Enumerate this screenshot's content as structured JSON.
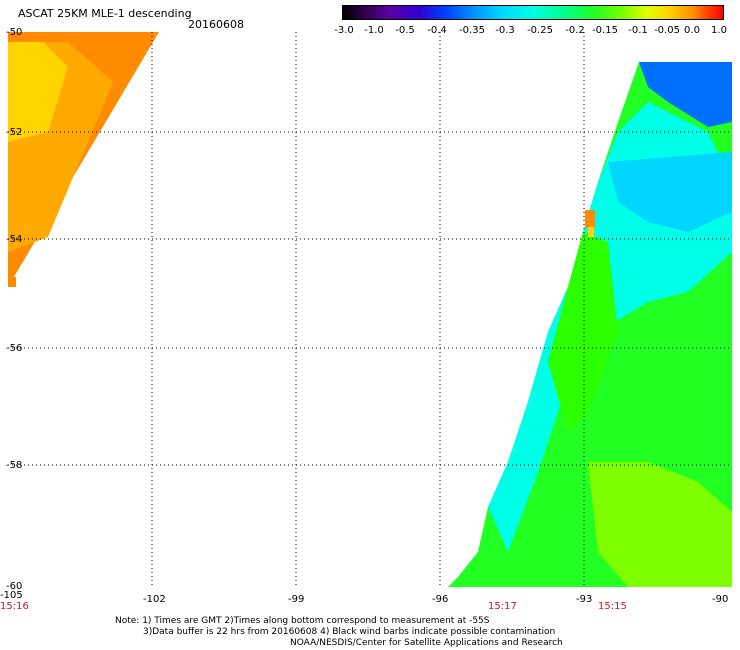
{
  "header": {
    "title": "ASCAT 25KM MLE-1 descending",
    "date": "20160608"
  },
  "colorbar": {
    "labels": [
      "-3.0",
      "-1.0",
      "-0.5",
      "-0.4",
      "-0.35",
      "-0.3",
      "-0.25",
      "-0.2",
      "-0.15",
      "-0.1",
      "-0.05",
      "0.0",
      "1.0"
    ]
  },
  "map": {
    "lat_labels": [
      "-50",
      "-52",
      "-54",
      "-56",
      "-58",
      "-60"
    ],
    "lon_labels": [
      "-105",
      "-102",
      "-99",
      "-96",
      "-93",
      "-90"
    ],
    "time_labels": [
      "15:16",
      "15:17",
      "15:15"
    ],
    "colors": {
      "orange": "#ff8c00",
      "light_orange": "#ffaa00",
      "yellow": "#ffd400",
      "green": "#22ff22",
      "bright_green": "#2bff00",
      "lime": "#7dff00",
      "cyan": "#00ffe8",
      "aqua": "#00d6ff",
      "blue": "#0070ff"
    }
  },
  "notes": {
    "line1": "Note: 1) Times are GMT 2)Times along bottom correspond to measurement at -55S",
    "line2": "3)Data buffer is 22 hrs from 20160608 4) Black wind barbs indicate possible contamination",
    "line3": "NOAA/NESDIS/Center for Satellite Applications and Research"
  }
}
